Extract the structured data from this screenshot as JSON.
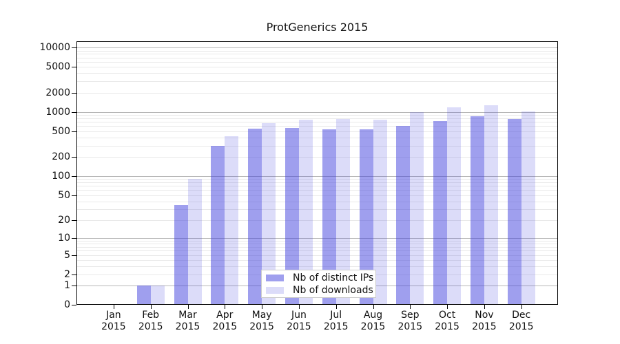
{
  "title": "ProtGenerics 2015",
  "chart_data": {
    "type": "bar",
    "title": "ProtGenerics 2015",
    "scale": "log1p",
    "grid": "log-minor-and-major-on",
    "legend_position": "bottom-center-inside",
    "categories": [
      "Jan 2015",
      "Feb 2015",
      "Mar 2015",
      "Apr 2015",
      "May 2015",
      "Jun 2015",
      "Jul 2015",
      "Aug 2015",
      "Sep 2015",
      "Oct 2015",
      "Nov 2015",
      "Dec 2015"
    ],
    "y_tick_labels": [
      "0",
      "1",
      "2",
      "5",
      "10",
      "20",
      "50",
      "100",
      "200",
      "500",
      "1000",
      "2000",
      "5000",
      "10000"
    ],
    "y_tick_values": [
      0,
      1,
      2,
      5,
      10,
      20,
      50,
      100,
      200,
      500,
      1000,
      2000,
      5000,
      10000
    ],
    "ylim": [
      0,
      12800
    ],
    "series": [
      {
        "name": "Nb of distinct IPs",
        "color": "rgba(60,60,220,0.49)",
        "values": [
          0,
          1,
          35,
          300,
          545,
          570,
          535,
          540,
          605,
          720,
          855,
          770
        ]
      },
      {
        "name": "Nb of downloads",
        "color": "rgba(60,60,220,0.18)",
        "values": [
          0,
          1,
          90,
          415,
          670,
          750,
          770,
          760,
          985,
          1180,
          1270,
          1030
        ]
      }
    ],
    "colors": {
      "grid_major": "#b6b6b6",
      "grid_minor": "#e9e9e9",
      "axis": "#000000",
      "background": "#ffffff"
    }
  }
}
